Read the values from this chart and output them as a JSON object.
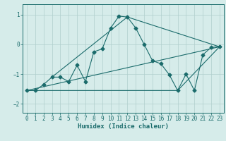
{
  "xlabel": "Humidex (Indice chaleur)",
  "background_color": "#d6ecea",
  "grid_color": "#b0cfcd",
  "line_color": "#1a6b6b",
  "xlim": [
    -0.5,
    23.5
  ],
  "ylim": [
    -2.3,
    1.35
  ],
  "yticks": [
    -2,
    -1,
    0,
    1
  ],
  "xticks": [
    0,
    1,
    2,
    3,
    4,
    5,
    6,
    7,
    8,
    9,
    10,
    11,
    12,
    13,
    14,
    15,
    16,
    17,
    18,
    19,
    20,
    21,
    22,
    23
  ],
  "series": [
    [
      0,
      -1.55
    ],
    [
      1,
      -1.55
    ],
    [
      2,
      -1.35
    ],
    [
      3,
      -1.1
    ],
    [
      4,
      -1.1
    ],
    [
      5,
      -1.25
    ],
    [
      6,
      -0.7
    ],
    [
      7,
      -1.25
    ],
    [
      8,
      -0.25
    ],
    [
      9,
      -0.15
    ],
    [
      10,
      0.55
    ],
    [
      11,
      0.95
    ],
    [
      12,
      0.92
    ],
    [
      13,
      0.55
    ],
    [
      14,
      0.0
    ],
    [
      15,
      -0.55
    ],
    [
      16,
      -0.65
    ],
    [
      17,
      -1.02
    ],
    [
      18,
      -1.55
    ],
    [
      19,
      -1.0
    ],
    [
      20,
      -1.55
    ],
    [
      21,
      -0.35
    ],
    [
      22,
      -0.1
    ],
    [
      23,
      -0.08
    ]
  ],
  "line2": [
    [
      0,
      -1.55
    ],
    [
      23,
      -0.08
    ]
  ],
  "line3": [
    [
      3,
      -1.1
    ],
    [
      12,
      0.92
    ],
    [
      23,
      -0.08
    ]
  ],
  "line4": [
    [
      0,
      -1.55
    ],
    [
      18,
      -1.55
    ],
    [
      23,
      -0.08
    ]
  ]
}
